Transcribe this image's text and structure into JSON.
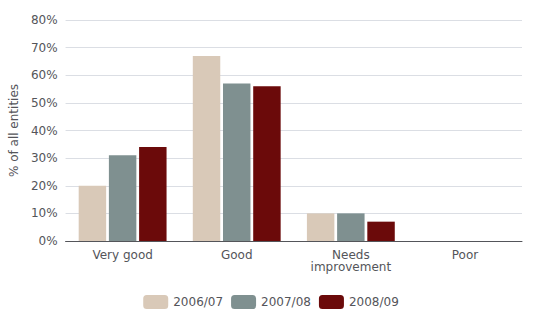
{
  "chart_data": {
    "type": "bar",
    "ylabel": "% of all entities",
    "categories": [
      "Very good",
      "Good",
      "Needs\nimprovement",
      "Poor"
    ],
    "series": [
      {
        "name": "2006/07",
        "color": "#d9c9b8",
        "values": [
          20,
          67,
          10,
          0
        ]
      },
      {
        "name": "2007/08",
        "color": "#7f9090",
        "values": [
          31,
          57,
          10,
          0
        ]
      },
      {
        "name": "2008/09",
        "color": "#6b0a0a",
        "values": [
          34,
          56,
          7,
          0
        ]
      }
    ],
    "ylim": [
      0,
      80
    ],
    "yticks": [
      {
        "value": 0,
        "label": "0%"
      },
      {
        "value": 10,
        "label": "10%"
      },
      {
        "value": 20,
        "label": "20%"
      },
      {
        "value": 30,
        "label": "30%"
      },
      {
        "value": 40,
        "label": "40%"
      },
      {
        "value": 50,
        "label": "50%"
      },
      {
        "value": 60,
        "label": "60%"
      },
      {
        "value": 70,
        "label": "70%"
      },
      {
        "value": 80,
        "label": "80%"
      }
    ],
    "grid": true,
    "legend": "bottom"
  }
}
